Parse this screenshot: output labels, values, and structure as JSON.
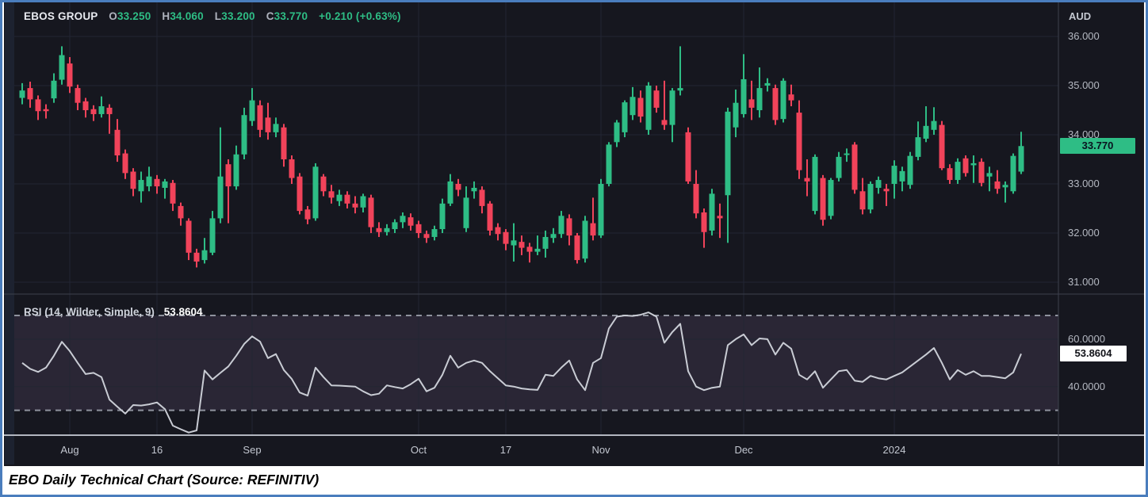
{
  "header": {
    "symbol": "EBOS GROUP",
    "o_label": "O",
    "o": "33.250",
    "h_label": "H",
    "h": "34.060",
    "l_label": "L",
    "l": "33.200",
    "c_label": "C",
    "c": "33.770",
    "change": "+0.210 (+0.63%)"
  },
  "price_axis": {
    "currency": "AUD",
    "ticks": [
      "36.000",
      "35.000",
      "34.000",
      "33.000",
      "32.000",
      "31.000"
    ],
    "tick_values": [
      36,
      35,
      34,
      33,
      32,
      31
    ],
    "last_price_label": "33.770",
    "last_price": 33.77
  },
  "rsi_pane": {
    "label": "RSI (14, Wilder, Simple, 9)",
    "value_label": "53.8604",
    "value": 53.8604,
    "ticks": [
      "60.0000",
      "40.0000"
    ],
    "tick_values": [
      60,
      40
    ],
    "upper_band": 70,
    "lower_band": 30
  },
  "time_axis": {
    "labels": [
      {
        "text": "Aug",
        "index": 6
      },
      {
        "text": "16",
        "index": 17
      },
      {
        "text": "Sep",
        "index": 29
      },
      {
        "text": "Oct",
        "index": 50
      },
      {
        "text": "17",
        "index": 61
      },
      {
        "text": "Nov",
        "index": 73
      },
      {
        "text": "Dec",
        "index": 91
      },
      {
        "text": "2024",
        "index": 110
      }
    ]
  },
  "caption": "EBO Daily Technical Chart (Source: REFINITIV)",
  "colors": {
    "background": "#16171f",
    "sidebar_strip": "#1d2230",
    "grid": "#222633",
    "up": "#2ebd85",
    "down": "#f1435a",
    "rsi_line": "#c9ccd4",
    "rsi_band_fill": "#2a2635",
    "band_dash": "#8f939e",
    "pane_separator": "#3d414d",
    "axis_separator": "#b3b7c0",
    "frame_border": "#4a7dbd"
  },
  "chart_data": [
    {
      "type": "candlestick",
      "title": "EBOS GROUP daily (AUD)",
      "ylim": [
        31,
        36
      ],
      "y_ticks": [
        36,
        35,
        34,
        33,
        32,
        31
      ],
      "last_close": 33.77,
      "ohlc": [
        [
          34.75,
          35.05,
          34.62,
          34.9
        ],
        [
          34.95,
          35.08,
          34.55,
          34.72
        ],
        [
          34.72,
          34.8,
          34.3,
          34.48
        ],
        [
          34.52,
          34.62,
          34.33,
          34.48
        ],
        [
          34.74,
          35.25,
          34.65,
          35.1
        ],
        [
          35.12,
          35.8,
          35.02,
          35.62
        ],
        [
          35.45,
          35.58,
          34.85,
          34.98
        ],
        [
          34.95,
          35.02,
          34.5,
          34.65
        ],
        [
          34.68,
          34.75,
          34.35,
          34.5
        ],
        [
          34.52,
          34.6,
          34.28,
          34.42
        ],
        [
          34.42,
          34.78,
          34.35,
          34.58
        ],
        [
          34.55,
          34.62,
          34.02,
          34.42
        ],
        [
          34.1,
          34.32,
          33.45,
          33.58
        ],
        [
          33.62,
          33.7,
          33.1,
          33.22
        ],
        [
          33.25,
          33.32,
          32.75,
          32.9
        ],
        [
          32.85,
          33.25,
          32.62,
          33.08
        ],
        [
          32.95,
          33.35,
          32.85,
          33.15
        ],
        [
          33.1,
          33.18,
          32.8,
          32.95
        ],
        [
          32.92,
          33.1,
          32.7,
          33.05
        ],
        [
          33.02,
          33.08,
          32.45,
          32.6
        ],
        [
          32.55,
          32.62,
          32.15,
          32.3
        ],
        [
          32.25,
          32.3,
          31.45,
          31.6
        ],
        [
          31.6,
          31.68,
          31.3,
          31.42
        ],
        [
          31.45,
          31.9,
          31.38,
          31.65
        ],
        [
          31.6,
          32.45,
          31.55,
          32.3
        ],
        [
          32.3,
          34.15,
          32.2,
          33.15
        ],
        [
          33.4,
          33.5,
          32.2,
          32.95
        ],
        [
          32.95,
          33.78,
          32.88,
          33.6
        ],
        [
          33.6,
          34.55,
          33.5,
          34.4
        ],
        [
          34.28,
          34.95,
          34.18,
          34.7
        ],
        [
          34.6,
          34.7,
          33.95,
          34.1
        ],
        [
          34.35,
          34.65,
          33.9,
          34.05
        ],
        [
          34.05,
          34.35,
          33.95,
          34.22
        ],
        [
          34.15,
          34.22,
          33.35,
          33.5
        ],
        [
          33.5,
          33.58,
          33.0,
          33.12
        ],
        [
          33.15,
          33.22,
          32.38,
          32.45
        ],
        [
          32.48,
          32.55,
          32.18,
          32.28
        ],
        [
          32.3,
          33.42,
          32.25,
          33.35
        ],
        [
          33.15,
          33.2,
          32.75,
          32.85
        ],
        [
          32.85,
          32.98,
          32.6,
          32.72
        ],
        [
          32.65,
          32.88,
          32.55,
          32.78
        ],
        [
          32.78,
          32.85,
          32.5,
          32.6
        ],
        [
          32.6,
          32.75,
          32.4,
          32.52
        ],
        [
          32.52,
          32.8,
          32.42,
          32.75
        ],
        [
          32.72,
          32.78,
          32.0,
          32.12
        ],
        [
          32.1,
          32.22,
          31.92,
          32.02
        ],
        [
          32.02,
          32.18,
          31.95,
          32.1
        ],
        [
          32.08,
          32.28,
          32.0,
          32.22
        ],
        [
          32.22,
          32.42,
          32.1,
          32.35
        ],
        [
          32.32,
          32.4,
          32.05,
          32.15
        ],
        [
          32.18,
          32.25,
          31.9,
          32.0
        ],
        [
          31.98,
          32.05,
          31.8,
          31.9
        ],
        [
          31.92,
          32.15,
          31.85,
          32.08
        ],
        [
          32.08,
          32.7,
          32.0,
          32.6
        ],
        [
          32.6,
          33.2,
          32.55,
          33.05
        ],
        [
          33.0,
          33.1,
          32.75,
          32.88
        ],
        [
          32.1,
          32.95,
          32.02,
          32.72
        ],
        [
          32.85,
          33.05,
          32.7,
          32.92
        ],
        [
          32.88,
          32.95,
          32.4,
          32.55
        ],
        [
          32.6,
          32.65,
          31.95,
          32.05
        ],
        [
          32.12,
          32.2,
          31.85,
          31.98
        ],
        [
          32.02,
          32.08,
          31.65,
          31.78
        ],
        [
          31.75,
          32.2,
          31.42,
          31.85
        ],
        [
          31.82,
          31.95,
          31.55,
          31.7
        ],
        [
          31.72,
          31.8,
          31.4,
          31.62
        ],
        [
          31.62,
          31.95,
          31.55,
          31.68
        ],
        [
          31.68,
          32.05,
          31.5,
          31.92
        ],
        [
          31.9,
          32.1,
          31.8,
          31.98
        ],
        [
          31.98,
          32.45,
          31.9,
          32.35
        ],
        [
          32.3,
          32.38,
          31.75,
          31.95
        ],
        [
          31.95,
          32.0,
          31.38,
          31.45
        ],
        [
          31.48,
          32.35,
          31.4,
          32.25
        ],
        [
          32.2,
          32.72,
          31.85,
          31.95
        ],
        [
          31.95,
          33.1,
          31.9,
          33.0
        ],
        [
          33.0,
          33.85,
          32.95,
          33.8
        ],
        [
          33.85,
          34.3,
          33.75,
          34.25
        ],
        [
          34.05,
          34.7,
          33.95,
          34.66
        ],
        [
          34.4,
          34.97,
          34.3,
          34.77
        ],
        [
          34.75,
          34.9,
          34.25,
          34.37
        ],
        [
          34.1,
          35.07,
          34.0,
          35.0
        ],
        [
          34.9,
          35.0,
          34.45,
          34.55
        ],
        [
          34.3,
          35.1,
          34.1,
          34.2
        ],
        [
          34.2,
          34.95,
          33.85,
          34.9
        ],
        [
          34.9,
          35.8,
          34.8,
          34.95
        ],
        [
          34.05,
          34.15,
          33.0,
          33.05
        ],
        [
          33.0,
          33.28,
          32.3,
          32.4
        ],
        [
          32.42,
          32.5,
          31.7,
          32.02
        ],
        [
          32.05,
          32.9,
          31.95,
          32.8
        ],
        [
          32.35,
          32.6,
          31.9,
          32.3
        ],
        [
          32.77,
          34.55,
          31.8,
          34.47
        ],
        [
          34.15,
          34.92,
          33.95,
          34.65
        ],
        [
          34.42,
          35.64,
          34.35,
          35.13
        ],
        [
          34.72,
          35.1,
          34.3,
          34.55
        ],
        [
          34.5,
          35.37,
          34.35,
          34.95
        ],
        [
          35.0,
          35.15,
          34.88,
          35.05
        ],
        [
          34.95,
          35.02,
          34.2,
          34.3
        ],
        [
          34.32,
          35.15,
          34.25,
          35.1
        ],
        [
          34.82,
          35.02,
          34.58,
          34.7
        ],
        [
          34.45,
          34.7,
          33.1,
          33.28
        ],
        [
          33.12,
          33.5,
          32.75,
          33.05
        ],
        [
          32.45,
          33.6,
          32.38,
          33.55
        ],
        [
          33.12,
          33.18,
          32.15,
          32.27
        ],
        [
          32.35,
          33.12,
          32.28,
          33.08
        ],
        [
          33.12,
          33.65,
          33.05,
          33.55
        ],
        [
          33.6,
          33.72,
          33.45,
          33.62
        ],
        [
          33.8,
          33.85,
          32.8,
          32.88
        ],
        [
          32.85,
          33.12,
          32.38,
          32.48
        ],
        [
          32.48,
          33.05,
          32.4,
          33.0
        ],
        [
          32.92,
          33.15,
          32.8,
          33.08
        ],
        [
          32.9,
          33.0,
          32.55,
          32.85
        ],
        [
          33.0,
          33.48,
          32.7,
          33.37
        ],
        [
          33.05,
          33.35,
          32.85,
          33.26
        ],
        [
          32.98,
          33.65,
          32.9,
          33.57
        ],
        [
          33.55,
          34.27,
          33.48,
          33.95
        ],
        [
          33.92,
          34.58,
          33.85,
          34.18
        ],
        [
          34.1,
          34.56,
          34.0,
          34.28
        ],
        [
          34.2,
          34.28,
          33.28,
          33.32
        ],
        [
          33.32,
          33.4,
          33.0,
          33.08
        ],
        [
          33.08,
          33.52,
          33.0,
          33.45
        ],
        [
          33.52,
          33.58,
          33.15,
          33.22
        ],
        [
          33.38,
          33.58,
          33.02,
          33.42
        ],
        [
          33.45,
          33.52,
          32.95,
          33.02
        ],
        [
          33.15,
          33.35,
          32.85,
          33.22
        ],
        [
          33.05,
          33.28,
          32.8,
          32.9
        ],
        [
          32.93,
          33.05,
          32.62,
          32.98
        ],
        [
          32.85,
          33.62,
          32.8,
          33.57
        ],
        [
          33.25,
          34.06,
          33.2,
          33.77
        ]
      ]
    },
    {
      "type": "line",
      "name": "RSI (14, Wilder, Simple, 9)",
      "y_ticks": [
        60,
        40
      ],
      "bands": [
        70,
        30
      ],
      "last_value": 53.8604,
      "values": [
        50.0,
        47.5,
        46.2,
        48.0,
        53.0,
        58.9,
        55.0,
        50.0,
        45.3,
        45.8,
        44.0,
        34.5,
        31.5,
        28.6,
        32.2,
        32.0,
        32.5,
        33.3,
        30.5,
        23.5,
        22.0,
        20.6,
        21.5,
        46.8,
        43.0,
        45.8,
        48.5,
        53.0,
        58.0,
        61.2,
        59.0,
        52.0,
        53.7,
        47.0,
        43.2,
        37.5,
        36.2,
        48.0,
        44.0,
        40.5,
        40.4,
        40.2,
        40.0,
        38.0,
        36.4,
        37.0,
        40.5,
        39.8,
        39.2,
        41.0,
        43.3,
        38.0,
        39.5,
        45.0,
        53.0,
        48.0,
        50.0,
        51.0,
        50.0,
        46.5,
        43.5,
        40.5,
        40.0,
        39.2,
        38.8,
        38.6,
        45.0,
        44.5,
        48.0,
        51.0,
        43.0,
        38.5,
        50.0,
        52.0,
        64.5,
        69.5,
        70.0,
        69.8,
        70.3,
        71.3,
        69.5,
        58.5,
        63.0,
        66.5,
        46.5,
        40.0,
        38.5,
        39.5,
        40.0,
        57.5,
        60.0,
        62.0,
        57.5,
        60.3,
        60.0,
        53.5,
        58.5,
        56.0,
        45.0,
        43.0,
        46.5,
        39.5,
        43.0,
        46.5,
        47.0,
        42.5,
        42.0,
        44.5,
        43.5,
        43.0,
        44.5,
        46.0,
        48.5,
        51.0,
        53.5,
        56.3,
        50.0,
        43.0,
        47.0,
        45.0,
        46.5,
        44.5,
        44.5,
        44.0,
        43.5,
        46.0,
        53.86
      ]
    }
  ]
}
